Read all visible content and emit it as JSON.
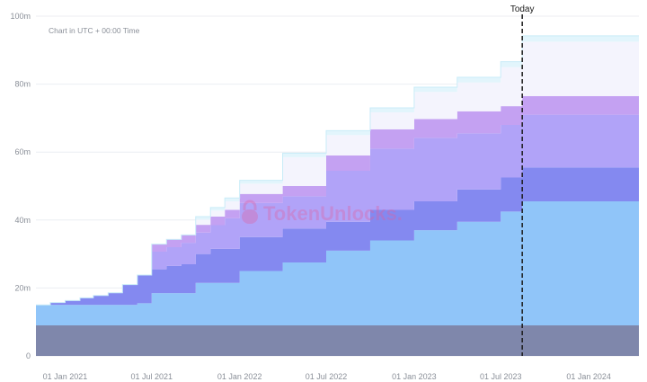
{
  "chart_data": {
    "type": "area",
    "stacked": true,
    "step": true,
    "note": "Chart in UTC + 00:00 Time",
    "today_label": "Today",
    "today_x": "2023-08-15",
    "watermark": "TokenUnlocks.",
    "xlim": [
      "2020-11-01",
      "2024-04-15"
    ],
    "ylim": [
      0,
      100
    ],
    "x_ticks": [
      {
        "x": "2021-01-01",
        "label": "01 Jan 2021"
      },
      {
        "x": "2021-07-01",
        "label": "01 Jul 2021"
      },
      {
        "x": "2022-01-01",
        "label": "01 Jan 2022"
      },
      {
        "x": "2022-07-01",
        "label": "01 Jul 2022"
      },
      {
        "x": "2023-01-01",
        "label": "01 Jan 2023"
      },
      {
        "x": "2023-07-01",
        "label": "01 Jul 2023"
      },
      {
        "x": "2024-01-01",
        "label": "01 Jan 2024"
      }
    ],
    "y_ticks": [
      {
        "v": 0,
        "label": "0"
      },
      {
        "v": 20,
        "label": "20m"
      },
      {
        "v": 40,
        "label": "40m"
      },
      {
        "v": 60,
        "label": "60m"
      },
      {
        "v": 80,
        "label": "80m"
      },
      {
        "v": 100,
        "label": "100m"
      }
    ],
    "grid": true,
    "x": [
      "2020-11-01",
      "2020-12-01",
      "2021-01-01",
      "2021-02-01",
      "2021-03-01",
      "2021-04-01",
      "2021-05-01",
      "2021-06-01",
      "2021-07-01",
      "2021-08-01",
      "2021-09-01",
      "2021-10-01",
      "2021-11-01",
      "2021-12-01",
      "2022-01-01",
      "2022-04-01",
      "2022-07-01",
      "2022-10-01",
      "2023-01-01",
      "2023-04-01",
      "2023-07-01",
      "2023-08-15",
      "2024-04-15"
    ],
    "series": [
      {
        "color": "#7f87ab",
        "values": [
          9,
          9,
          9,
          9,
          9,
          9,
          9,
          9,
          9,
          9,
          9,
          9,
          9,
          9,
          9,
          9,
          9,
          9,
          9,
          9,
          9,
          9,
          9
        ]
      },
      {
        "color": "#90c5f9",
        "values": [
          6,
          6,
          6,
          6,
          6,
          6,
          6,
          6.5,
          9.5,
          9.5,
          9.5,
          12.5,
          12.5,
          12.5,
          16,
          18.5,
          22,
          25,
          28,
          30.5,
          33.5,
          36.5,
          36.5
        ]
      },
      {
        "color": "#8489f0",
        "values": [
          0,
          0.7,
          1.3,
          2.1,
          2.8,
          3.6,
          6,
          8.3,
          7,
          8,
          8.5,
          8.5,
          10,
          10,
          10,
          10,
          8.5,
          9,
          8.5,
          9.5,
          10,
          10,
          10
        ]
      },
      {
        "color": "#b1a3f8",
        "values": [
          0,
          0,
          0,
          0,
          0,
          0,
          0,
          0,
          5.2,
          5.5,
          6.3,
          6.3,
          7,
          9,
          10,
          9.5,
          15,
          18,
          18.7,
          16.5,
          15.5,
          15.5,
          16.5
        ]
      },
      {
        "color": "#c4a1f2",
        "values": [
          0,
          0,
          0,
          0,
          0,
          0,
          0,
          0,
          2.2,
          2.3,
          2.3,
          2.3,
          2.5,
          2.5,
          2.7,
          3,
          4.5,
          5.7,
          5.5,
          6.5,
          5.5,
          5.5,
          5.5
        ]
      },
      {
        "color": "#f4f4fd",
        "values": [
          0,
          0,
          0,
          0,
          0,
          0,
          0,
          0,
          0,
          0,
          0,
          1.5,
          1.8,
          2.5,
          3,
          8.5,
          6,
          5,
          8,
          8.5,
          11.5,
          16,
          20
        ]
      },
      {
        "color": "#e2f5fc",
        "values": [
          0,
          0,
          0,
          0,
          0,
          0,
          0,
          0,
          0,
          0,
          0,
          0.9,
          0.9,
          1,
          1,
          1.2,
          1.3,
          1.3,
          1.4,
          1.5,
          1.6,
          1.7,
          1.8
        ]
      }
    ]
  }
}
